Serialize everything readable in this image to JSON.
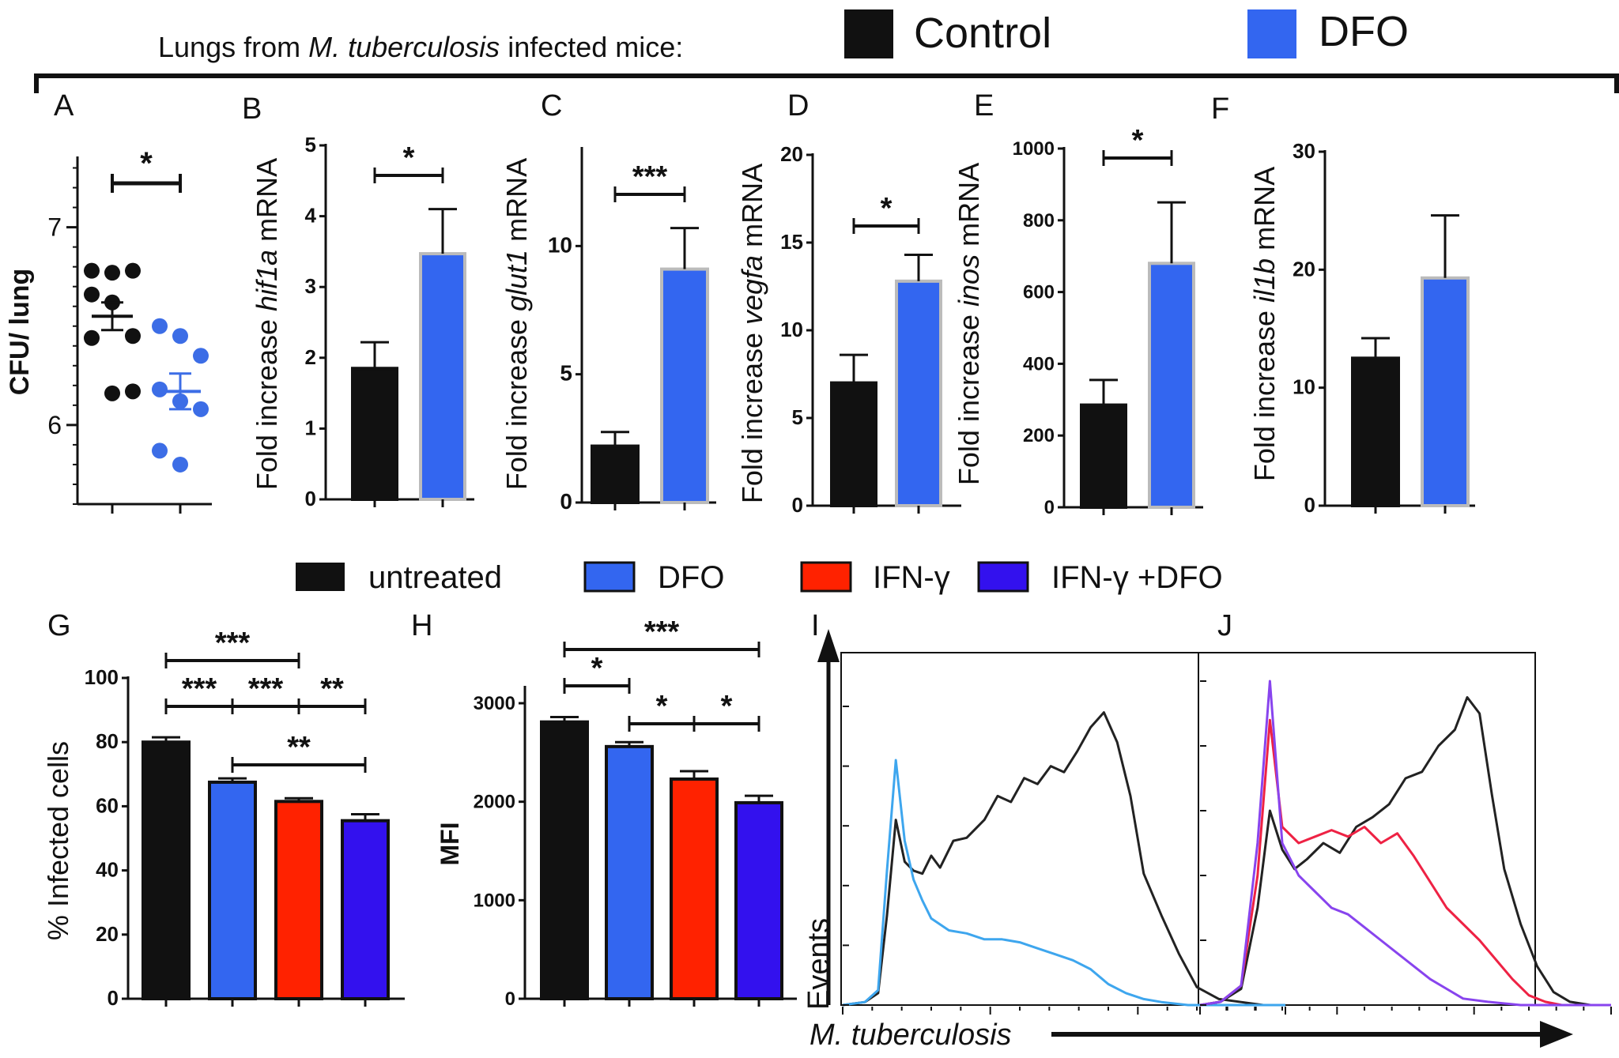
{
  "header": {
    "title_prefix": "Lungs from ",
    "title_species": "M. tuberculosis",
    "title_suffix": " infected mice:",
    "legend": [
      {
        "label": "Control",
        "color": "#111111"
      },
      {
        "label": "DFO",
        "color": "#3366f0"
      }
    ]
  },
  "legend2": [
    {
      "label": "untreated",
      "color": "#111111"
    },
    {
      "label": "DFO",
      "color": "#3366f0"
    },
    {
      "label": "IFN-γ",
      "color": "#ff2200"
    },
    {
      "label": "IFN-γ +DFO",
      "color": "#3311ee"
    }
  ],
  "chart_data": [
    {
      "panel": "A",
      "type": "scatter",
      "ylabel": "CFU/ lung",
      "ylim": [
        5.6,
        7.35
      ],
      "yticks": [
        6,
        7
      ],
      "groups": [
        {
          "name": "Control",
          "color": "#111111",
          "values": [
            6.78,
            6.77,
            6.78,
            6.66,
            6.62,
            6.45,
            6.44,
            6.16,
            6.17
          ],
          "mean": 6.55,
          "sem": 0.07
        },
        {
          "name": "DFO",
          "color": "#3c6de6",
          "values": [
            6.5,
            6.45,
            6.35,
            6.18,
            6.12,
            6.08,
            5.87,
            5.8
          ],
          "mean": 6.17,
          "sem": 0.09
        }
      ],
      "significance": [
        {
          "from": 0,
          "to": 1,
          "label": "*"
        }
      ]
    },
    {
      "panel": "B",
      "type": "bar",
      "ylabel_prefix": "Fold increase ",
      "ylabel_gene": "hif1a",
      "ylabel_suffix": " mRNA",
      "ylim": [
        0,
        5
      ],
      "yticks": [
        0,
        1,
        2,
        3,
        4,
        5
      ],
      "categories": [
        "Control",
        "DFO"
      ],
      "colors": [
        "#111111",
        "#3366f0"
      ],
      "values": [
        1.85,
        3.47
      ],
      "errors": [
        0.37,
        0.63
      ],
      "significance": [
        {
          "from": 0,
          "to": 1,
          "label": "*"
        }
      ]
    },
    {
      "panel": "C",
      "type": "bar",
      "ylabel_prefix": "Fold increase ",
      "ylabel_gene": "glut1",
      "ylabel_suffix": " mRNA",
      "ylim": [
        0,
        13.8
      ],
      "yticks": [
        0,
        5,
        10
      ],
      "categories": [
        "Control",
        "DFO"
      ],
      "colors": [
        "#111111",
        "#3366f0"
      ],
      "values": [
        2.2,
        9.1
      ],
      "errors": [
        0.55,
        1.6
      ],
      "significance": [
        {
          "from": 0,
          "to": 1,
          "label": "***"
        }
      ]
    },
    {
      "panel": "D",
      "type": "bar",
      "ylabel_prefix": "Fold increase ",
      "ylabel_gene": "vegfa",
      "ylabel_suffix": " mRNA",
      "ylim": [
        0,
        20
      ],
      "yticks": [
        0,
        5,
        10,
        15,
        20
      ],
      "categories": [
        "Control",
        "DFO"
      ],
      "colors": [
        "#111111",
        "#3366f0"
      ],
      "values": [
        7.0,
        12.8
      ],
      "errors": [
        1.6,
        1.5
      ],
      "significance": [
        {
          "from": 0,
          "to": 1,
          "label": "*"
        }
      ]
    },
    {
      "panel": "E",
      "type": "bar",
      "ylabel_prefix": "Fold increase ",
      "ylabel_gene": "inos",
      "ylabel_suffix": " mRNA",
      "ylim": [
        0,
        1000
      ],
      "yticks": [
        0,
        200,
        400,
        600,
        800,
        1000
      ],
      "categories": [
        "Control",
        "DFO"
      ],
      "colors": [
        "#111111",
        "#3366f0"
      ],
      "values": [
        285,
        680
      ],
      "errors": [
        70,
        170
      ],
      "significance": [
        {
          "from": 0,
          "to": 1,
          "label": "*"
        }
      ]
    },
    {
      "panel": "F",
      "type": "bar",
      "ylabel_prefix": "Fold increase ",
      "ylabel_gene": "il1b",
      "ylabel_suffix": " mRNA",
      "ylim": [
        0,
        30
      ],
      "yticks": [
        0,
        10,
        20,
        30
      ],
      "categories": [
        "Control",
        "DFO"
      ],
      "colors": [
        "#111111",
        "#3366f0"
      ],
      "values": [
        12.5,
        19.3
      ],
      "errors": [
        1.7,
        5.3
      ],
      "significance": []
    },
    {
      "panel": "G",
      "type": "bar",
      "ylabel": "% Infected cells",
      "ylim": [
        0,
        100
      ],
      "yticks": [
        0,
        20,
        40,
        60,
        80,
        100
      ],
      "categories": [
        "untreated",
        "DFO",
        "IFN-γ",
        "IFN-γ +DFO"
      ],
      "colors": [
        "#111111",
        "#3366f0",
        "#ff2200",
        "#3311ee"
      ],
      "values": [
        80,
        67.5,
        61.5,
        55.5
      ],
      "errors": [
        1.5,
        1.2,
        1.0,
        2.0
      ],
      "significance": [
        {
          "from": 0,
          "to": 2,
          "label": "***",
          "level": 0
        },
        {
          "from": 0,
          "to": 1,
          "label": "***",
          "level": 1
        },
        {
          "from": 1,
          "to": 2,
          "label": "***",
          "level": 1
        },
        {
          "from": 2,
          "to": 3,
          "label": "**",
          "level": 1
        },
        {
          "from": 1,
          "to": 3,
          "label": "**",
          "level": 2
        }
      ]
    },
    {
      "panel": "H",
      "type": "bar",
      "ylabel": "MFI",
      "ylim": [
        0,
        3000
      ],
      "yticks": [
        0,
        1000,
        2000,
        3000
      ],
      "categories": [
        "untreated",
        "DFO",
        "IFN-γ",
        "IFN-γ +DFO"
      ],
      "colors": [
        "#111111",
        "#3366f0",
        "#ff2200",
        "#3311ee"
      ],
      "values": [
        2810,
        2560,
        2230,
        1990
      ],
      "errors": [
        50,
        45,
        80,
        70
      ],
      "significance": [
        {
          "from": 0,
          "to": 3,
          "label": "***",
          "level": 0
        },
        {
          "from": 0,
          "to": 1,
          "label": "*",
          "level": 1
        },
        {
          "from": 1,
          "to": 2,
          "label": "*",
          "level": 2
        },
        {
          "from": 2,
          "to": 3,
          "label": "*",
          "level": 2
        }
      ]
    },
    {
      "panel": "I",
      "type": "line",
      "ylabel": "Events",
      "xlabel": "M. tuberculosis",
      "series": [
        {
          "name": "untreated",
          "color": "#222222",
          "x": [
            0,
            0.05,
            0.08,
            0.1,
            0.12,
            0.14,
            0.16,
            0.18,
            0.2,
            0.22,
            0.25,
            0.28,
            0.32,
            0.35,
            0.38,
            0.41,
            0.44,
            0.47,
            0.5,
            0.53,
            0.56,
            0.59,
            0.62,
            0.65,
            0.68,
            0.72,
            0.76,
            0.8,
            0.85,
            0.9,
            0.95,
            1.0
          ],
          "y": [
            0,
            0.01,
            0.04,
            0.3,
            0.62,
            0.48,
            0.45,
            0.44,
            0.5,
            0.46,
            0.55,
            0.56,
            0.62,
            0.7,
            0.68,
            0.76,
            0.74,
            0.8,
            0.78,
            0.85,
            0.93,
            0.98,
            0.88,
            0.7,
            0.44,
            0.3,
            0.17,
            0.06,
            0.02,
            0.01,
            0.0,
            0.0
          ]
        },
        {
          "name": "DFO",
          "color": "#3ea6ee",
          "x": [
            0,
            0.05,
            0.08,
            0.1,
            0.12,
            0.14,
            0.16,
            0.18,
            0.2,
            0.24,
            0.28,
            0.32,
            0.36,
            0.4,
            0.44,
            0.48,
            0.52,
            0.56,
            0.6,
            0.64,
            0.68,
            0.72,
            0.78,
            0.85,
            0.92,
            1.0
          ],
          "y": [
            0,
            0.01,
            0.05,
            0.45,
            0.82,
            0.55,
            0.42,
            0.35,
            0.29,
            0.25,
            0.24,
            0.22,
            0.22,
            0.21,
            0.19,
            0.17,
            0.15,
            0.12,
            0.07,
            0.04,
            0.02,
            0.01,
            0.0,
            0.0,
            0.0,
            0.0
          ]
        }
      ]
    },
    {
      "panel": "J",
      "type": "line",
      "series": [
        {
          "name": "untreated",
          "color": "#222222",
          "x": [
            0,
            0.05,
            0.1,
            0.14,
            0.17,
            0.2,
            0.23,
            0.26,
            0.3,
            0.34,
            0.38,
            0.42,
            0.46,
            0.5,
            0.54,
            0.58,
            0.62,
            0.65,
            0.68,
            0.71,
            0.74,
            0.78,
            0.82,
            0.86,
            0.9,
            0.95,
            1.0
          ],
          "y": [
            0,
            0.01,
            0.05,
            0.3,
            0.6,
            0.48,
            0.42,
            0.45,
            0.5,
            0.47,
            0.55,
            0.58,
            0.62,
            0.7,
            0.72,
            0.8,
            0.85,
            0.95,
            0.9,
            0.65,
            0.42,
            0.25,
            0.12,
            0.04,
            0.01,
            0.0,
            0.0
          ]
        },
        {
          "name": "IFN-γ",
          "color": "#ee2244",
          "x": [
            0,
            0.05,
            0.1,
            0.14,
            0.17,
            0.2,
            0.24,
            0.28,
            0.32,
            0.36,
            0.4,
            0.44,
            0.48,
            0.52,
            0.56,
            0.6,
            0.64,
            0.68,
            0.72,
            0.76,
            0.8,
            0.84,
            0.88,
            0.93,
            1.0
          ],
          "y": [
            0,
            0.01,
            0.06,
            0.4,
            0.88,
            0.55,
            0.5,
            0.52,
            0.54,
            0.52,
            0.55,
            0.5,
            0.53,
            0.46,
            0.38,
            0.3,
            0.25,
            0.2,
            0.14,
            0.08,
            0.03,
            0.01,
            0.0,
            0.0,
            0.0
          ]
        },
        {
          "name": "IFN-γ +DFO",
          "color": "#8844ee",
          "x": [
            0,
            0.05,
            0.1,
            0.14,
            0.17,
            0.2,
            0.24,
            0.28,
            0.32,
            0.36,
            0.4,
            0.44,
            0.48,
            0.52,
            0.56,
            0.6,
            0.64,
            0.7,
            0.78,
            0.86,
            1.0
          ],
          "y": [
            0,
            0.01,
            0.06,
            0.5,
            1.0,
            0.5,
            0.4,
            0.35,
            0.3,
            0.28,
            0.24,
            0.2,
            0.16,
            0.12,
            0.08,
            0.05,
            0.02,
            0.01,
            0.0,
            0.0,
            0.0
          ]
        }
      ]
    }
  ]
}
